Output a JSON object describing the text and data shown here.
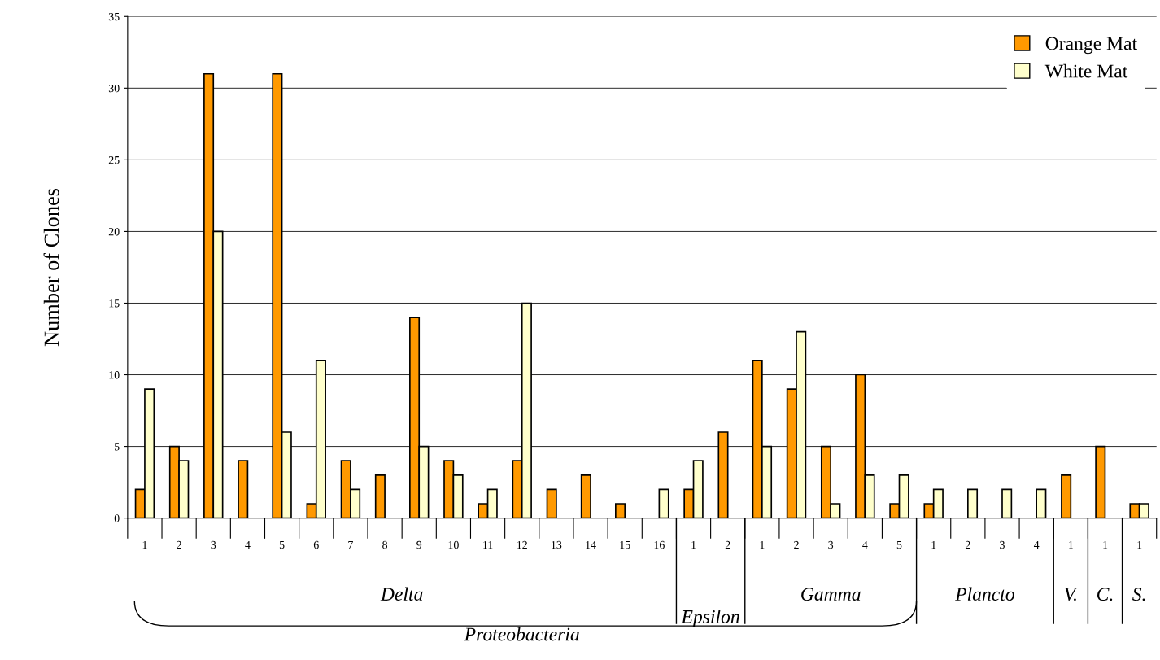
{
  "chart_data": {
    "type": "bar",
    "ylabel": "Number of Clones",
    "categories": [
      "1",
      "2",
      "3",
      "4",
      "5",
      "6",
      "7",
      "8",
      "9",
      "10",
      "11",
      "12",
      "13",
      "14",
      "15",
      "16",
      "1",
      "2",
      "1",
      "2",
      "3",
      "4",
      "5",
      "1",
      "2",
      "3",
      "4",
      "1",
      "1",
      "1"
    ],
    "series": [
      {
        "name": "Orange Mat",
        "color": "#ff9900",
        "values": [
          2,
          5,
          31,
          4,
          31,
          1,
          4,
          3,
          14,
          4,
          1,
          4,
          2,
          3,
          1,
          null,
          2,
          6,
          11,
          9,
          5,
          10,
          1,
          1,
          null,
          null,
          null,
          3,
          5,
          1
        ]
      },
      {
        "name": "White Mat",
        "color": "#ffffcc",
        "values": [
          9,
          4,
          20,
          null,
          6,
          11,
          2,
          null,
          5,
          3,
          2,
          15,
          null,
          null,
          null,
          2,
          4,
          null,
          5,
          13,
          1,
          3,
          3,
          2,
          2,
          2,
          2,
          null,
          null,
          1
        ]
      }
    ],
    "ylim": [
      0,
      35
    ],
    "yticks": [
      0,
      5,
      10,
      15,
      20,
      25,
      30,
      35
    ],
    "grid": "y",
    "legend": "top right",
    "annotations": [
      "Delta",
      "Epsilon",
      "Gamma",
      "Plancto",
      "V.",
      "C.",
      "S.",
      "Proteobacteria"
    ]
  }
}
